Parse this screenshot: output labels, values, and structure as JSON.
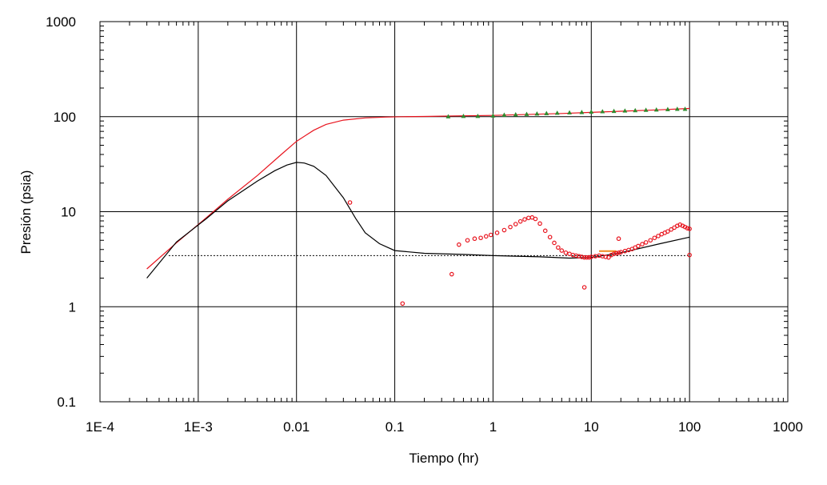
{
  "chart_data": {
    "type": "scatter",
    "title": "",
    "xlabel": "Tiempo (hr)",
    "ylabel": "Presión (psia)",
    "xscale": "log",
    "yscale": "log",
    "xlim": [
      0.0001,
      1000
    ],
    "ylim": [
      0.1,
      1000
    ],
    "grid": true,
    "legend": "none",
    "x_tick_labels": [
      "1E-4",
      "1E-3",
      "0.01",
      "0.1",
      "1",
      "10",
      "100",
      "1000"
    ],
    "y_tick_labels": [
      "0.1",
      "1",
      "10",
      "100",
      "1000"
    ],
    "x_ticks": [
      0.0001,
      0.001,
      0.01,
      0.1,
      1,
      10,
      100,
      1000
    ],
    "y_ticks": [
      0.1,
      1,
      10,
      100,
      1000
    ],
    "colors": {
      "pressure_model": "#e8141e",
      "derivative_model": "#000000",
      "derivative_data": "#e8141e",
      "pressure_data": "#2e8b2e",
      "stabilization": "#000000",
      "segment": "#f08a1e"
    },
    "series": [
      {
        "kind": "line",
        "role": "pressure_model",
        "x": [
          0.0003,
          0.0006,
          0.0012,
          0.002,
          0.004,
          0.007,
          0.01,
          0.015,
          0.02,
          0.03,
          0.05,
          0.08,
          0.12,
          0.2,
          0.5,
          1,
          2,
          5,
          10,
          20,
          50,
          100
        ],
        "y": [
          2.5,
          4.7,
          8.6,
          13.5,
          24,
          40,
          55,
          72,
          83,
          92,
          97,
          99,
          100,
          100.5,
          102,
          103,
          105,
          108,
          111,
          114,
          118,
          122
        ]
      },
      {
        "kind": "line",
        "role": "derivative_model",
        "x": [
          0.0003,
          0.0006,
          0.0012,
          0.002,
          0.004,
          0.006,
          0.008,
          0.01,
          0.012,
          0.015,
          0.02,
          0.03,
          0.04,
          0.05,
          0.07,
          0.1,
          0.2,
          0.5,
          1,
          3,
          6,
          10,
          20,
          50,
          100
        ],
        "y": [
          2.0,
          4.8,
          8.4,
          13,
          21,
          27,
          31,
          33,
          32.5,
          30,
          24,
          14,
          8.5,
          6.0,
          4.6,
          3.9,
          3.65,
          3.55,
          3.45,
          3.35,
          3.25,
          3.3,
          3.7,
          4.6,
          5.4
        ]
      },
      {
        "kind": "dashed",
        "role": "stabilization",
        "x": [
          0.0005,
          100
        ],
        "y": [
          3.45,
          3.45
        ]
      },
      {
        "kind": "segment",
        "role": "segment",
        "x": [
          12,
          18
        ],
        "y": [
          3.85,
          3.85
        ]
      },
      {
        "kind": "markers",
        "role": "derivative_data",
        "x": [
          0.035,
          0.12,
          0.38,
          0.45,
          0.55,
          0.65,
          0.75,
          0.85,
          0.95,
          1.1,
          1.3,
          1.5,
          1.7,
          1.9,
          2.1,
          2.3,
          2.5,
          2.7,
          3.0,
          3.4,
          3.8,
          4.2,
          4.6,
          5.0,
          5.5,
          6.0,
          6.5,
          7.0,
          7.5,
          8.0,
          8.5,
          9.0,
          9.5,
          10,
          11,
          12,
          13,
          14,
          15,
          16,
          17,
          18,
          19,
          20,
          22,
          24,
          26,
          28,
          30,
          33,
          36,
          40,
          44,
          48,
          52,
          56,
          60,
          65,
          70,
          75,
          80,
          85,
          90,
          95,
          100,
          8.5,
          19,
          100
        ],
        "y": [
          12.5,
          1.08,
          2.2,
          4.5,
          5.0,
          5.2,
          5.3,
          5.5,
          5.7,
          6.0,
          6.4,
          6.9,
          7.4,
          7.9,
          8.3,
          8.6,
          8.7,
          8.4,
          7.5,
          6.3,
          5.4,
          4.7,
          4.2,
          3.9,
          3.7,
          3.6,
          3.5,
          3.45,
          3.4,
          3.35,
          3.3,
          3.3,
          3.3,
          3.35,
          3.4,
          3.45,
          3.4,
          3.35,
          3.3,
          3.5,
          3.6,
          3.65,
          3.7,
          3.75,
          3.85,
          3.95,
          4.05,
          4.2,
          4.35,
          4.55,
          4.75,
          5.0,
          5.3,
          5.55,
          5.8,
          6.0,
          6.2,
          6.5,
          6.8,
          7.1,
          7.3,
          7.1,
          6.9,
          6.7,
          6.6,
          1.6,
          5.2,
          3.5
        ]
      },
      {
        "kind": "triangles",
        "role": "pressure_data",
        "x": [
          0.35,
          0.5,
          0.7,
          1.0,
          1.3,
          1.7,
          2.2,
          2.8,
          3.5,
          4.5,
          6.0,
          8.0,
          10,
          13,
          17,
          22,
          28,
          36,
          46,
          60,
          75,
          90
        ],
        "y": [
          100,
          101,
          101,
          102,
          104,
          105,
          106,
          107,
          108,
          109,
          110,
          111,
          112,
          113,
          114,
          115,
          116,
          117,
          118,
          119,
          120,
          120
        ]
      }
    ]
  }
}
